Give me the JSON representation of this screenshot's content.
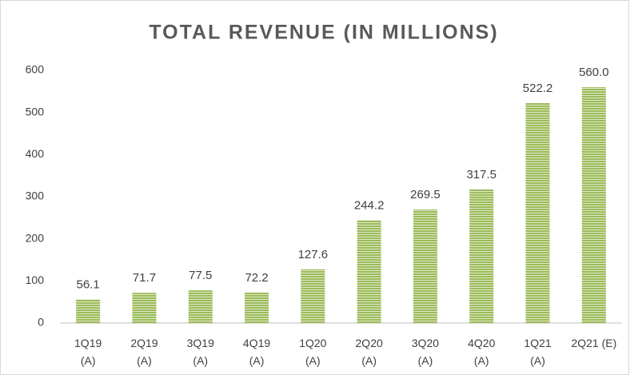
{
  "chart_data": {
    "type": "bar",
    "title": "TOTAL REVENUE (IN MILLIONS)",
    "categories": [
      [
        "1Q19",
        "(A)"
      ],
      [
        "2Q19",
        "(A)"
      ],
      [
        "3Q19",
        "(A)"
      ],
      [
        "4Q19",
        "(A)"
      ],
      [
        "1Q20",
        "(A)"
      ],
      [
        "2Q20",
        "(A)"
      ],
      [
        "3Q20",
        "(A)"
      ],
      [
        "4Q20",
        "(A)"
      ],
      [
        "1Q21",
        "(A)"
      ],
      [
        "2Q21 (E)"
      ]
    ],
    "values": [
      56.1,
      71.7,
      77.5,
      72.2,
      127.6,
      244.2,
      269.5,
      317.5,
      522.2,
      560.0
    ],
    "value_labels": [
      "56.1",
      "71.7",
      "77.5",
      "72.2",
      "127.6",
      "244.2",
      "269.5",
      "317.5",
      "522.2",
      "560.0"
    ],
    "color": "#9bbb59",
    "ylim": [
      0,
      600
    ],
    "yticks": [
      0,
      100,
      200,
      300,
      400,
      500,
      600
    ],
    "grid": false
  }
}
